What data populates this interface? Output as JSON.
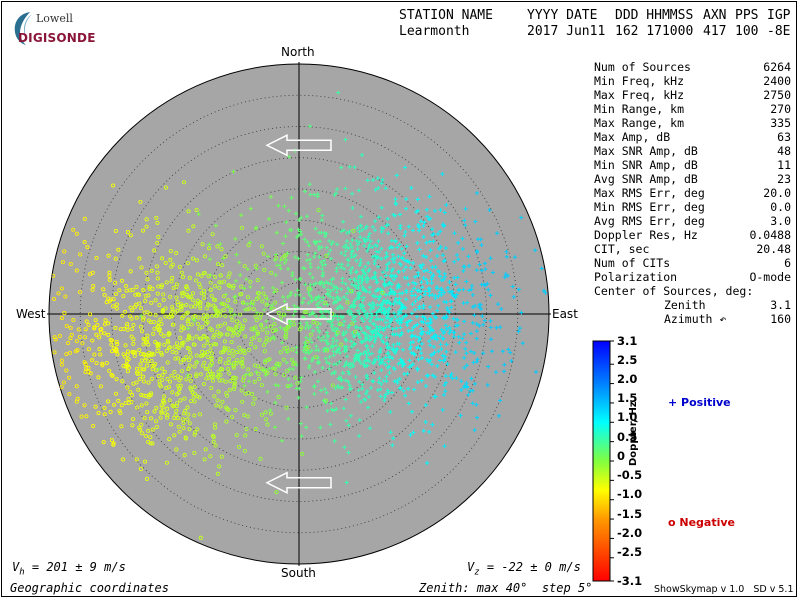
{
  "logo": {
    "top_text": "Lowell",
    "bottom_text": "DIGISONDE"
  },
  "header": {
    "labels": [
      "STATION NAME",
      "YYYY DATE",
      "DDD HHMMSS",
      "AXN",
      "PPS",
      "IGP"
    ],
    "values": [
      "Learmonth",
      "2017 Jun11",
      "162 171000",
      "417",
      "100",
      "-8E"
    ]
  },
  "stats": [
    {
      "label": "Num of Sources",
      "value": "6264"
    },
    {
      "label": "Min Freq, kHz",
      "value": "2400"
    },
    {
      "label": "Max Freq, kHz",
      "value": "2750"
    },
    {
      "label": "Min Range, km",
      "value": "270"
    },
    {
      "label": "Max Range, km",
      "value": "335"
    },
    {
      "label": "Max Amp, dB",
      "value": "63"
    },
    {
      "label": "Max SNR Amp, dB",
      "value": "48"
    },
    {
      "label": "Min SNR Amp, dB",
      "value": "11"
    },
    {
      "label": "Avg SNR Amp, dB",
      "value": "23"
    },
    {
      "label": "Max RMS Err, deg",
      "value": "20.0"
    },
    {
      "label": "Min RMS Err, deg",
      "value": "0.0"
    },
    {
      "label": "Avg RMS Err, deg",
      "value": "3.0"
    },
    {
      "label": "Doppler Res, Hz",
      "value": "0.0488"
    },
    {
      "label": "CIT, sec",
      "value": "20.48"
    },
    {
      "label": "Num of CITs",
      "value": "6"
    },
    {
      "label": "Polarization",
      "value": "O-mode"
    }
  ],
  "center": {
    "title": "Center of Sources, deg:",
    "zenith_label": "Zenith",
    "zenith_value": "3.1",
    "azimuth_label": "Azimuth ↶",
    "azimuth_value": "160"
  },
  "compass": {
    "north": "North",
    "south": "South",
    "east": "East",
    "west": "West"
  },
  "velocity": {
    "vh": {
      "symbol": "V",
      "sub": "h",
      "text": " = 201 ± 9 m/s"
    },
    "vz": {
      "symbol": "V",
      "sub": "z",
      "text": " = -22 ± 0 m/s"
    }
  },
  "footer": {
    "coords": "Geographic coordinates",
    "zenith_info": "Zenith: max 40°  step 5°",
    "software": "ShowSkymap v 1.0   SD v 5.1"
  },
  "legend": {
    "positive": "+ Positive",
    "negative": "o Negative",
    "axis_label": "Doppler, Hz"
  },
  "colors": {
    "plot_bg": "#a6a6a6",
    "positive": "#0000cc",
    "negative": "#cc0000",
    "logo": "#8a1538"
  },
  "chart_data": {
    "type": "scatter",
    "projection": "polar skymap, zenith angle radial, azimuth angular",
    "zenith_max_deg": 40,
    "zenith_step_deg": 5,
    "ring_zeniths_deg": [
      5,
      10,
      15,
      20,
      25,
      30,
      35,
      40
    ],
    "colorbar": {
      "label": "Doppler, Hz",
      "min": -3.1,
      "max": 3.1,
      "ticks": [
        "3.1",
        "2.5",
        "2.0",
        "1.5",
        "1.0",
        "0.5",
        "0",
        "-0.5",
        "-1.0",
        "-1.5",
        "-2.0",
        "-2.5",
        "-3.1"
      ],
      "tick_values": [
        3.1,
        2.5,
        2.0,
        1.5,
        1.0,
        0.5,
        0,
        -0.5,
        -1.0,
        -1.5,
        -2.0,
        -2.5,
        -3.1
      ],
      "stops": [
        {
          "v": 3.1,
          "c": "#0000ff"
        },
        {
          "v": 2.0,
          "c": "#0080ff"
        },
        {
          "v": 1.0,
          "c": "#00ffff"
        },
        {
          "v": 0.0,
          "c": "#80ff40"
        },
        {
          "v": -0.75,
          "c": "#ffff00"
        },
        {
          "v": -1.5,
          "c": "#ff9900"
        },
        {
          "v": -3.1,
          "c": "#ff0000"
        }
      ]
    },
    "clusters": [
      {
        "name": "Positive",
        "marker": "+",
        "doppler_range": [
          0.05,
          1.4
        ],
        "center_az_deg": 85,
        "center_zenith_deg": 12,
        "spread_deg": 9,
        "count": 1500
      },
      {
        "name": "Negative",
        "marker": "o",
        "doppler_range": [
          -0.9,
          -0.05
        ],
        "center_az_deg": 255,
        "center_zenith_deg": 20,
        "spread_deg": 9,
        "count": 1000
      }
    ],
    "arrows": [
      {
        "az_deg": 0,
        "zenith_deg": 27,
        "direction": "west"
      },
      {
        "az_deg": 0,
        "zenith_deg": 0,
        "direction": "west"
      },
      {
        "az_deg": 180,
        "zenith_deg": 27,
        "direction": "west"
      }
    ]
  }
}
